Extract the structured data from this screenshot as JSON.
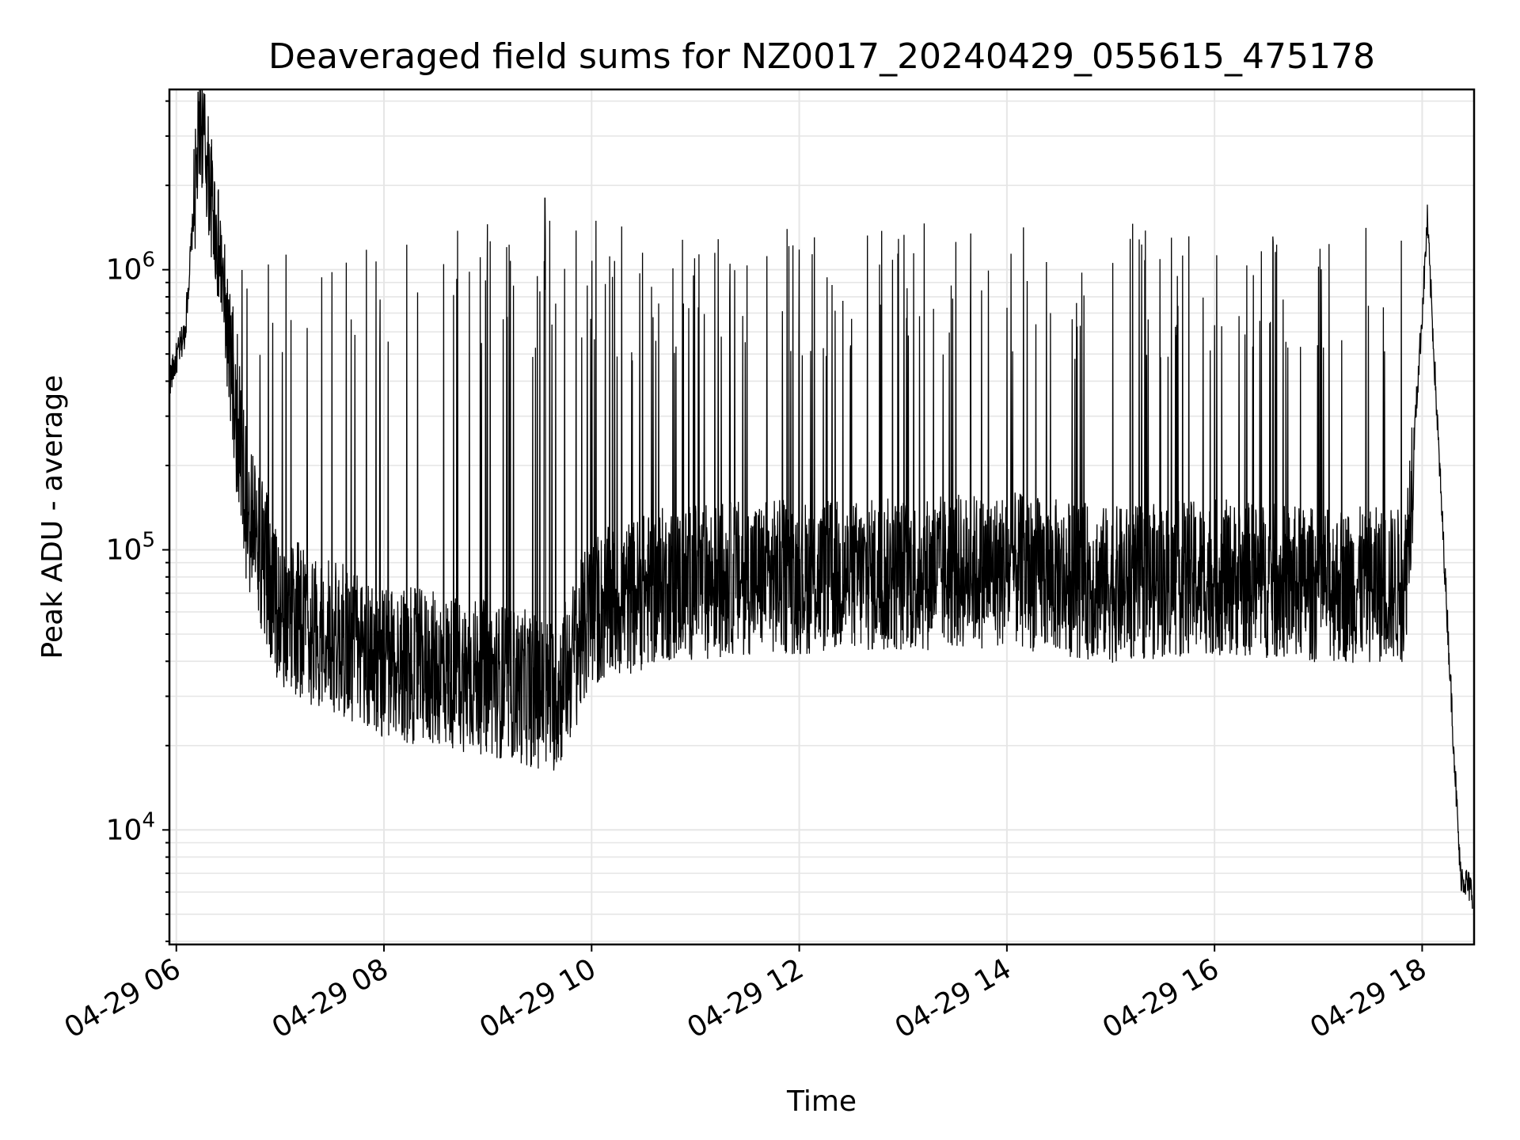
{
  "chart_data": {
    "type": "line",
    "title": "Deaveraged field sums for NZ0017_20240429_055615_475178",
    "xlabel": "Time",
    "ylabel": "Peak ADU - average",
    "yscale": "log",
    "grid": true,
    "xlim": [
      "2024-04-29 05:56",
      "2024-04-29 18:30"
    ],
    "ylim": [
      3900,
      4400000
    ],
    "x_ticks": [
      {
        "value": "2024-04-29 06:00",
        "label": "04-29 06"
      },
      {
        "value": "2024-04-29 08:00",
        "label": "04-29 08"
      },
      {
        "value": "2024-04-29 10:00",
        "label": "04-29 10"
      },
      {
        "value": "2024-04-29 12:00",
        "label": "04-29 12"
      },
      {
        "value": "2024-04-29 14:00",
        "label": "04-29 14"
      },
      {
        "value": "2024-04-29 16:00",
        "label": "04-29 16"
      },
      {
        "value": "2024-04-29 18:00",
        "label": "04-29 18"
      }
    ],
    "y_ticks": [
      {
        "value": 10000,
        "base": "10",
        "exp": "4"
      },
      {
        "value": 100000,
        "base": "10",
        "exp": "5"
      },
      {
        "value": 1000000,
        "base": "10",
        "exp": "6"
      }
    ],
    "series": [
      {
        "color": "#000000",
        "description_points": [
          {
            "x": "2024-04-29 05:56",
            "y": 400000
          },
          {
            "x": "2024-04-29 06:05",
            "y": 600000
          },
          {
            "x": "2024-04-29 06:14",
            "y": 3500000
          },
          {
            "x": "2024-04-29 06:25",
            "y": 1100000
          },
          {
            "x": "2024-04-29 06:40",
            "y": 150000
          },
          {
            "x": "2024-04-29 07:00",
            "y": 60000
          },
          {
            "x": "2024-04-29 08:00",
            "y": 40000
          },
          {
            "x": "2024-04-29 09:00",
            "y": 35000
          },
          {
            "x": "2024-04-29 09:40",
            "y": 30000
          },
          {
            "x": "2024-04-29 10:00",
            "y": 60000
          },
          {
            "x": "2024-04-29 10:40",
            "y": 75000
          },
          {
            "x": "2024-04-29 11:30",
            "y": 80000
          },
          {
            "x": "2024-04-29 12:30",
            "y": 80000
          },
          {
            "x": "2024-04-29 14:00",
            "y": 85000
          },
          {
            "x": "2024-04-29 15:00",
            "y": 75000
          },
          {
            "x": "2024-04-29 16:00",
            "y": 80000
          },
          {
            "x": "2024-04-29 17:00",
            "y": 75000
          },
          {
            "x": "2024-04-29 17:50",
            "y": 75000
          },
          {
            "x": "2024-04-29 18:00",
            "y": 700000
          },
          {
            "x": "2024-04-29 18:03",
            "y": 1500000
          },
          {
            "x": "2024-04-29 18:10",
            "y": 200000
          },
          {
            "x": "2024-04-29 18:22",
            "y": 7000
          },
          {
            "x": "2024-04-29 18:29",
            "y": 6000
          }
        ],
        "spike_max": 1500000,
        "spike_peak_time": "2024-04-29 09:33",
        "spike_peak_value": 1800000
      }
    ]
  }
}
